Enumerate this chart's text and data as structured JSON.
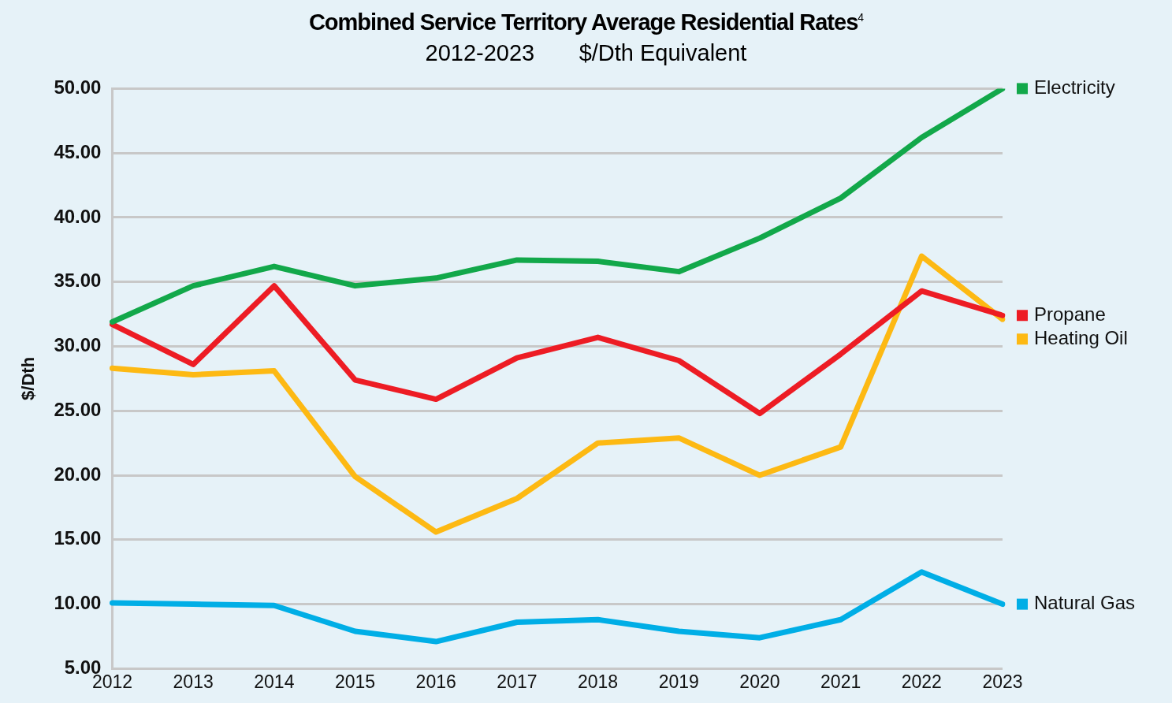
{
  "chart_data": {
    "type": "line",
    "title": "Combined Service Territory Average Residential Rates$^{4}$",
    "subtitle": "2012-2023       $/Dth Equivalent",
    "ylabel": "$/Dth",
    "categories": [
      "2012",
      "2013",
      "2014",
      "2015",
      "2016",
      "2017",
      "2018",
      "2019",
      "2020",
      "2021",
      "2022",
      "2023"
    ],
    "series": [
      {
        "name": "Electricity",
        "color": "#12a84a",
        "values": [
          31.9,
          34.7,
          36.2,
          34.7,
          35.3,
          36.7,
          36.6,
          35.8,
          38.4,
          41.5,
          46.2,
          50.0
        ]
      },
      {
        "name": "Propane",
        "color": "#ed1c24",
        "values": [
          31.7,
          28.6,
          34.7,
          27.4,
          25.9,
          29.1,
          30.7,
          28.9,
          24.8,
          29.4,
          34.3,
          32.4
        ]
      },
      {
        "name": "Heating Oil",
        "color": "#fdb913",
        "values": [
          28.3,
          27.8,
          28.1,
          19.9,
          15.6,
          18.2,
          22.5,
          22.9,
          20.0,
          22.2,
          37.0,
          32.1
        ]
      },
      {
        "name": "Natural Gas",
        "color": "#00aee6",
        "values": [
          10.1,
          10.0,
          9.9,
          7.9,
          7.1,
          8.6,
          8.8,
          7.9,
          7.4,
          8.8,
          12.5,
          10.0
        ]
      }
    ],
    "ylim": [
      5,
      50
    ],
    "yticks": [
      {
        "value": 5,
        "label": "5.00"
      },
      {
        "value": 10,
        "label": "10.00"
      },
      {
        "value": 15,
        "label": "15.00"
      },
      {
        "value": 20,
        "label": "20.00"
      },
      {
        "value": 25,
        "label": "25.00"
      },
      {
        "value": 30,
        "label": "30.00"
      },
      {
        "value": 35,
        "label": "35.00"
      },
      {
        "value": 40,
        "label": "40.00"
      },
      {
        "value": 45,
        "label": "45.00"
      },
      {
        "value": 50,
        "label": "50.00"
      }
    ],
    "grid": "y",
    "legend": "right",
    "marker": "none",
    "line_style": "solid"
  }
}
